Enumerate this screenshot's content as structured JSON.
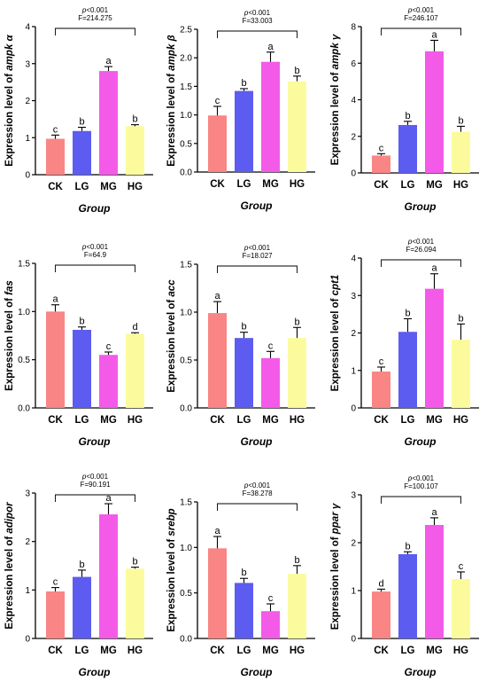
{
  "colors": {
    "CK": "#f98585",
    "LG": "#5c5cf0",
    "MG": "#f45ae8",
    "HG": "#fbfb9e"
  },
  "chart_data": [
    {
      "type": "bar",
      "ylabel_prefix": "Expression level of ",
      "ylabel_gene": "ampk α",
      "xlabel": "Group",
      "categories": [
        "CK",
        "LG",
        "MG",
        "HG"
      ],
      "values": [
        0.97,
        1.18,
        2.8,
        1.31
      ],
      "errors": [
        0.1,
        0.1,
        0.12,
        0.04
      ],
      "letters": [
        "c",
        "b",
        "a",
        "b"
      ],
      "p_text": "p<0.001",
      "f_text": "F=214.275",
      "ylim": [
        0,
        4
      ],
      "yticks": [
        "0",
        "1",
        "2",
        "3",
        "4"
      ]
    },
    {
      "type": "bar",
      "ylabel_prefix": "Expression level of ",
      "ylabel_gene": "ampk β",
      "xlabel": "Group",
      "categories": [
        "CK",
        "LG",
        "MG",
        "HG"
      ],
      "values": [
        0.99,
        1.42,
        1.93,
        1.59
      ],
      "errors": [
        0.16,
        0.04,
        0.17,
        0.09
      ],
      "letters": [
        "c",
        "b",
        "a",
        "b"
      ],
      "p_text": "p<0.001",
      "f_text": "F=33.003",
      "ylim": [
        0,
        2.5
      ],
      "yticks": [
        "0.0",
        "0.5",
        "1.0",
        "1.5",
        "2.0",
        "2.5"
      ]
    },
    {
      "type": "bar",
      "ylabel_prefix": "Expression level of ",
      "ylabel_gene": "ampk γ",
      "xlabel": "Group",
      "categories": [
        "CK",
        "LG",
        "MG",
        "HG"
      ],
      "values": [
        0.95,
        2.62,
        6.65,
        2.25
      ],
      "errors": [
        0.1,
        0.2,
        0.6,
        0.3
      ],
      "letters": [
        "c",
        "b",
        "a",
        "b"
      ],
      "p_text": "p<0.001",
      "f_text": "F=246.107",
      "ylim": [
        0,
        8
      ],
      "yticks": [
        "0",
        "2",
        "4",
        "6",
        "8"
      ]
    },
    {
      "type": "bar",
      "ylabel_prefix": "Expression level of ",
      "ylabel_gene": "fas",
      "xlabel": "Group",
      "categories": [
        "CK",
        "LG",
        "MG",
        "HG"
      ],
      "values": [
        1.0,
        0.81,
        0.55,
        0.77
      ],
      "errors": [
        0.07,
        0.03,
        0.03,
        0.01
      ],
      "letters": [
        "a",
        "b",
        "c",
        "d"
      ],
      "p_text": "p<0.001",
      "f_text": "F=64.9",
      "ylim": [
        0,
        1.5
      ],
      "yticks": [
        "0.0",
        "0.5",
        "1.0",
        "1.5"
      ]
    },
    {
      "type": "bar",
      "ylabel_prefix": "Expression level of ",
      "ylabel_gene": "acc",
      "xlabel": "Group",
      "categories": [
        "CK",
        "LG",
        "MG",
        "HG"
      ],
      "values": [
        0.99,
        0.73,
        0.52,
        0.73
      ],
      "errors": [
        0.12,
        0.06,
        0.07,
        0.11
      ],
      "letters": [
        "a",
        "b",
        "c",
        "b"
      ],
      "p_text": "p<0.001",
      "f_text": "F=18.027",
      "ylim": [
        0,
        1.5
      ],
      "yticks": [
        "0.0",
        "0.5",
        "1.0",
        "1.5"
      ]
    },
    {
      "type": "bar",
      "ylabel_prefix": "Expression level of ",
      "ylabel_gene": "cpt1",
      "xlabel": "Group",
      "categories": [
        "CK",
        "LG",
        "MG",
        "HG"
      ],
      "values": [
        0.97,
        2.03,
        3.18,
        1.82
      ],
      "errors": [
        0.12,
        0.35,
        0.4,
        0.42
      ],
      "letters": [
        "c",
        "b",
        "a",
        "b"
      ],
      "p_text": "p<0.001",
      "f_text": "F=26.094",
      "ylim": [
        0,
        4
      ],
      "yticks": [
        "0",
        "1",
        "2",
        "3",
        "4"
      ]
    },
    {
      "type": "bar",
      "ylabel_prefix": "Expression level of ",
      "ylabel_gene": "adipor",
      "xlabel": "Group",
      "categories": [
        "CK",
        "LG",
        "MG",
        "HG"
      ],
      "values": [
        0.97,
        1.27,
        2.56,
        1.44
      ],
      "errors": [
        0.08,
        0.14,
        0.22,
        0.03
      ],
      "letters": [
        "c",
        "b",
        "a",
        "b"
      ],
      "p_text": "p<0.001",
      "f_text": "F=90.191",
      "ylim": [
        0,
        3
      ],
      "yticks": [
        "0",
        "1",
        "2",
        "3"
      ]
    },
    {
      "type": "bar",
      "ylabel_prefix": "Expression level of ",
      "ylabel_gene": "srebp",
      "xlabel": "Group",
      "categories": [
        "CK",
        "LG",
        "MG",
        "HG"
      ],
      "values": [
        0.99,
        0.61,
        0.3,
        0.71
      ],
      "errors": [
        0.13,
        0.05,
        0.08,
        0.09
      ],
      "letters": [
        "a",
        "b",
        "c",
        "b"
      ],
      "p_text": "p<0.001",
      "f_text": "F=38.278",
      "ylim": [
        0,
        1.5
      ],
      "yticks": [
        "0.0",
        "0.5",
        "1.0",
        "1.5"
      ]
    },
    {
      "type": "bar",
      "ylabel_prefix": "Expression level of ",
      "ylabel_gene": "ppar γ",
      "xlabel": "Group",
      "categories": [
        "CK",
        "LG",
        "MG",
        "HG"
      ],
      "values": [
        0.98,
        1.76,
        2.37,
        1.24
      ],
      "errors": [
        0.05,
        0.05,
        0.15,
        0.15
      ],
      "letters": [
        "d",
        "b",
        "a",
        "c"
      ],
      "p_text": "p<0.001",
      "f_text": "F=100.107",
      "ylim": [
        0,
        3
      ],
      "yticks": [
        "0",
        "1",
        "2",
        "3"
      ]
    }
  ]
}
